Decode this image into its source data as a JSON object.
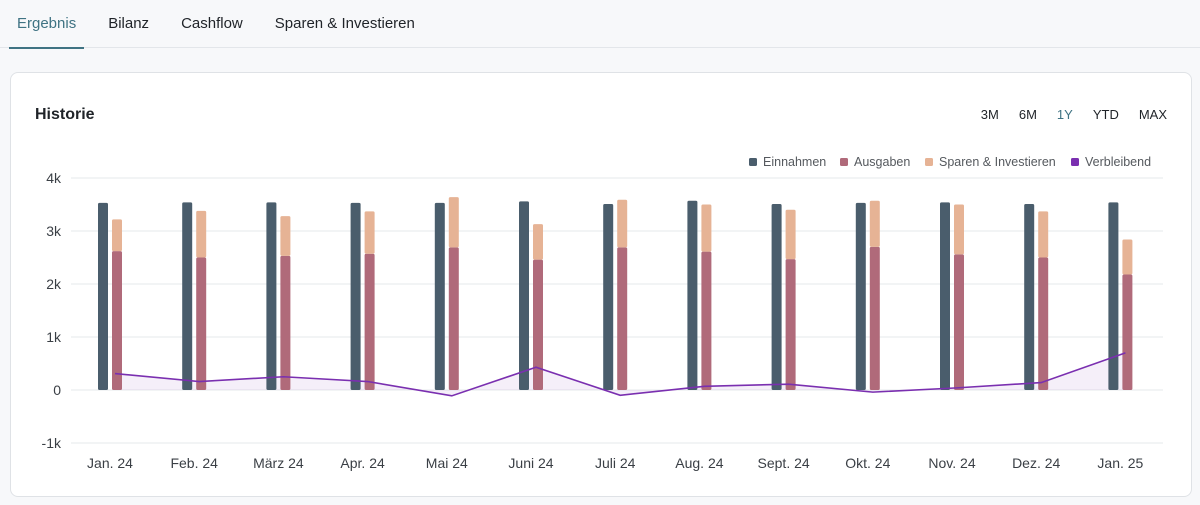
{
  "tabs": [
    {
      "label": "Ergebnis",
      "active": true
    },
    {
      "label": "Bilanz",
      "active": false
    },
    {
      "label": "Cashflow",
      "active": false
    },
    {
      "label": "Sparen & Investieren",
      "active": false
    }
  ],
  "card": {
    "title": "Historie",
    "ranges": [
      {
        "label": "3M",
        "active": false
      },
      {
        "label": "6M",
        "active": false
      },
      {
        "label": "1Y",
        "active": true
      },
      {
        "label": "YTD",
        "active": false
      },
      {
        "label": "MAX",
        "active": false
      }
    ]
  },
  "chart_data": {
    "type": "bar",
    "categories": [
      "Jan. 24",
      "Feb. 24",
      "März 24",
      "Apr. 24",
      "Mai 24",
      "Juni 24",
      "Juli 24",
      "Aug. 24",
      "Sept. 24",
      "Okt. 24",
      "Nov. 24",
      "Dez. 24",
      "Jan. 25"
    ],
    "ylim": [
      -1000,
      4000
    ],
    "yticks": [
      -1000,
      0,
      1000,
      2000,
      3000,
      4000
    ],
    "ytick_labels": [
      "-1k",
      "0",
      "1k",
      "2k",
      "3k",
      "4k"
    ],
    "grid": true,
    "legend_position": "top-right",
    "series": [
      {
        "name": "Einnahmen",
        "type": "bar",
        "color": "#4a5d6c",
        "values": [
          3530,
          3540,
          3540,
          3530,
          3530,
          3560,
          3510,
          3570,
          3510,
          3530,
          3540,
          3510,
          3540
        ]
      },
      {
        "name": "Ausgaben",
        "type": "stacked-bar",
        "color": "#b06a7a",
        "values": [
          2620,
          2500,
          2530,
          2570,
          2690,
          2460,
          2690,
          2610,
          2470,
          2700,
          2560,
          2500,
          2180
        ]
      },
      {
        "name": "Sparen & Investieren",
        "type": "stacked-bar",
        "color": "#e6b395",
        "values": [
          600,
          880,
          750,
          800,
          950,
          670,
          900,
          890,
          930,
          870,
          940,
          870,
          660
        ]
      },
      {
        "name": "Verbleibend",
        "type": "line-area",
        "color": "#7a2fb0",
        "values": [
          310,
          160,
          250,
          160,
          -110,
          430,
          -100,
          70,
          110,
          -40,
          40,
          140,
          700
        ]
      }
    ]
  }
}
